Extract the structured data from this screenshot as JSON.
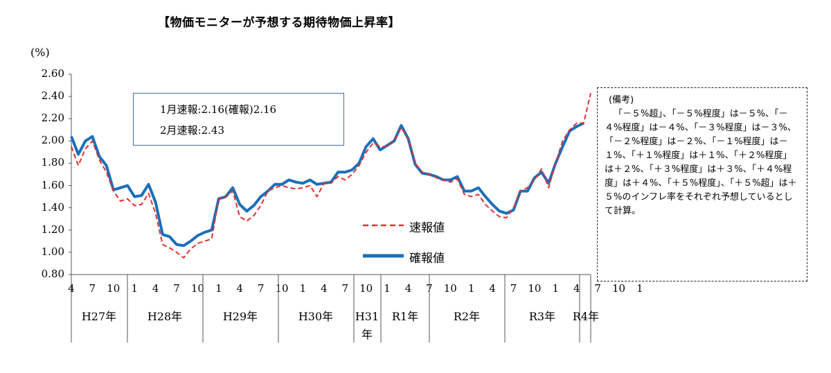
{
  "chart_data": {
    "type": "line",
    "title": "【物価モニターが予想する期待物価上昇率】",
    "ylabel": "(%)",
    "ylim": [
      0.8,
      2.6
    ],
    "yticks": [
      "2.60",
      "2.40",
      "2.20",
      "2.00",
      "1.80",
      "1.60",
      "1.40",
      "1.20",
      "1.00",
      "0.80"
    ],
    "x_month_labels": [
      "4",
      "7",
      "10",
      "1",
      "4",
      "7",
      "10",
      "1",
      "4",
      "7",
      "10",
      "1",
      "4",
      "7",
      "10",
      "1",
      "4",
      "7",
      "10",
      "1",
      "4",
      "7",
      "10",
      "1",
      "4",
      "7",
      "10",
      "1"
    ],
    "x_year_labels": [
      "H27年",
      "H28年",
      "H29年",
      "H30年",
      "H31年",
      "R1年",
      "R2年",
      "R3年",
      "R4年"
    ],
    "grid": false,
    "legend_position": "inside-bottom-right",
    "series": [
      {
        "name": "速報値",
        "style": "dashed",
        "color": "#e03030",
        "values": [
          1.95,
          1.78,
          1.93,
          2.0,
          1.83,
          1.72,
          1.55,
          1.46,
          1.48,
          1.42,
          1.43,
          1.53,
          1.35,
          1.07,
          1.04,
          1.0,
          0.95,
          1.03,
          1.08,
          1.1,
          1.12,
          1.48,
          1.5,
          1.55,
          1.32,
          1.28,
          1.33,
          1.42,
          1.55,
          1.58,
          1.6,
          1.58,
          1.57,
          1.58,
          1.6,
          1.5,
          1.62,
          1.62,
          1.68,
          1.65,
          1.7,
          1.78,
          1.9,
          1.98,
          1.95,
          1.95,
          2.0,
          2.12,
          2.02,
          1.8,
          1.72,
          1.7,
          1.67,
          1.65,
          1.63,
          1.66,
          1.52,
          1.5,
          1.52,
          1.43,
          1.37,
          1.32,
          1.31,
          1.4,
          1.55,
          1.58,
          1.65,
          1.75,
          1.58,
          1.8,
          2.0,
          2.1,
          2.16,
          2.16,
          2.43
        ]
      },
      {
        "name": "確報値",
        "style": "solid",
        "color": "#1a6fba",
        "values": [
          2.04,
          1.88,
          2.0,
          2.04,
          1.86,
          1.78,
          1.56,
          1.58,
          1.6,
          1.5,
          1.51,
          1.61,
          1.45,
          1.16,
          1.14,
          1.07,
          1.06,
          1.1,
          1.15,
          1.18,
          1.2,
          1.48,
          1.5,
          1.58,
          1.43,
          1.37,
          1.42,
          1.5,
          1.55,
          1.61,
          1.61,
          1.65,
          1.63,
          1.62,
          1.65,
          1.61,
          1.62,
          1.63,
          1.72,
          1.72,
          1.74,
          1.8,
          1.95,
          2.02,
          1.92,
          1.96,
          2.0,
          2.14,
          2.02,
          1.79,
          1.71,
          1.7,
          1.68,
          1.65,
          1.65,
          1.68,
          1.55,
          1.55,
          1.58,
          1.5,
          1.43,
          1.37,
          1.35,
          1.38,
          1.55,
          1.55,
          1.67,
          1.72,
          1.62,
          1.8,
          1.95,
          2.09,
          2.13,
          2.16
        ]
      }
    ]
  },
  "annotation": {
    "line1": "1月速報:2.16(確報)2.16",
    "line2": "2月速報:2.43"
  },
  "notes": {
    "heading": "(備考)",
    "body": "「－５%超」、「－５%程度」は－５%、「－４%程度」は－４%、「－３%程度」は－３%、「－２%程度」は－２%、「－１%程度」は－１%、「＋１%程度」は＋１%、「＋２%程度」は＋２%、「＋３%程度」は＋３%、「＋４%程度」は＋４%、「＋５%程度」、「＋５%超」は＋５%のインフレ率をそれぞれ予想しているとして計算。"
  }
}
